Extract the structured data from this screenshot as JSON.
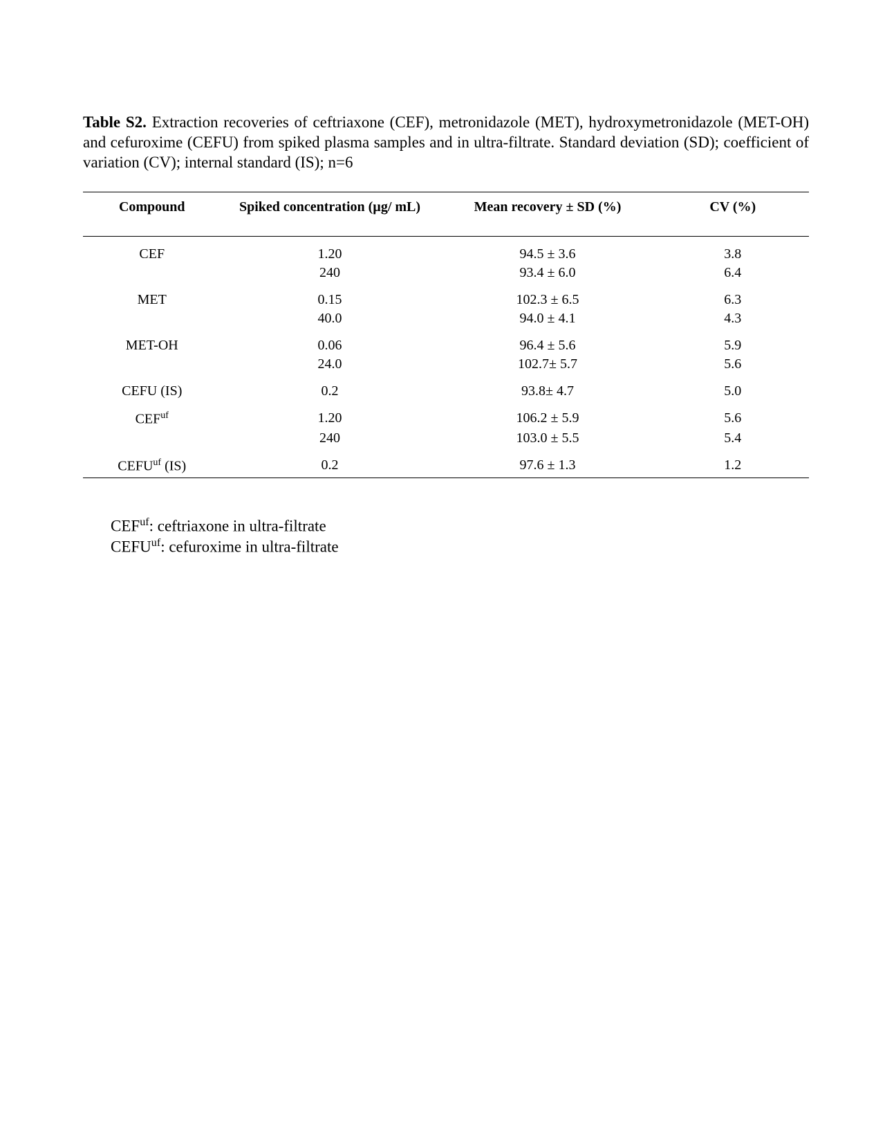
{
  "caption": {
    "label": "Table S2.",
    "text": "Extraction recoveries of ceftriaxone (CEF), metronidazole (MET), hydroxymetronidazole (MET-OH) and cefuroxime (CEFU) from spiked plasma samples and in ultra-filtrate. Standard deviation (SD); coefficient of variation (CV); internal standard (IS); n=6"
  },
  "table": {
    "type": "table",
    "background_color": "#ffffff",
    "border_color": "#000000",
    "header_font_weight": "bold",
    "font_family": "Times New Roman",
    "header_fontsize": 20,
    "body_fontsize": 20,
    "columns": [
      {
        "key": "compound",
        "label": "Compound"
      },
      {
        "key": "spiked",
        "label": "Spiked concentration (µg/ mL)"
      },
      {
        "key": "recovery",
        "label": "Mean recovery ± SD (%)"
      },
      {
        "key": "cv",
        "label": "CV (%)"
      }
    ],
    "rows": [
      {
        "compound": "CEF",
        "spiked": "1.20",
        "recovery": "94.5 ± 3.6",
        "cv": "3.8",
        "section_start": true
      },
      {
        "compound": "",
        "spiked": "240",
        "recovery": "93.4 ± 6.0",
        "cv": "6.4"
      },
      {
        "compound": "MET",
        "spiked": "0.15",
        "recovery": "102.3 ± 6.5",
        "cv": "6.3",
        "section_start": true
      },
      {
        "compound": "",
        "spiked": "40.0",
        "recovery": "94.0 ± 4.1",
        "cv": "4.3"
      },
      {
        "compound": "MET-OH",
        "spiked": "0.06",
        "recovery": "96.4 ± 5.6",
        "cv": "5.9",
        "section_start": true
      },
      {
        "compound": "",
        "spiked": "24.0",
        "recovery": "102.7± 5.7",
        "cv": "5.6"
      },
      {
        "compound": "CEFU (IS)",
        "spiked": "0.2",
        "recovery": "93.8± 4.7",
        "cv": "5.0",
        "section_start": true
      },
      {
        "compound": "CEF_uf",
        "spiked": "1.20",
        "recovery": "106.2 ± 5.9",
        "cv": "5.6",
        "section_start": true,
        "has_sup": true,
        "sup_base": "CEF",
        "sup_text": "uf",
        "sup_suffix": ""
      },
      {
        "compound": "",
        "spiked": "240",
        "recovery": "103.0 ± 5.5",
        "cv": "5.4"
      },
      {
        "compound": "CEFU_uf (IS)",
        "spiked": "0.2",
        "recovery": "97.6 ± 1.3",
        "cv": "1.2",
        "section_start": true,
        "last": true,
        "has_sup": true,
        "sup_base": "CEFU",
        "sup_text": "uf",
        "sup_suffix": " (IS)"
      }
    ]
  },
  "footnotes": [
    {
      "base": "CEF",
      "sup": "uf",
      "text": ": ceftriaxone in ultra-filtrate"
    },
    {
      "base": "CEFU",
      "sup": "uf",
      "text": ": cefuroxime in ultra-filtrate"
    }
  ]
}
